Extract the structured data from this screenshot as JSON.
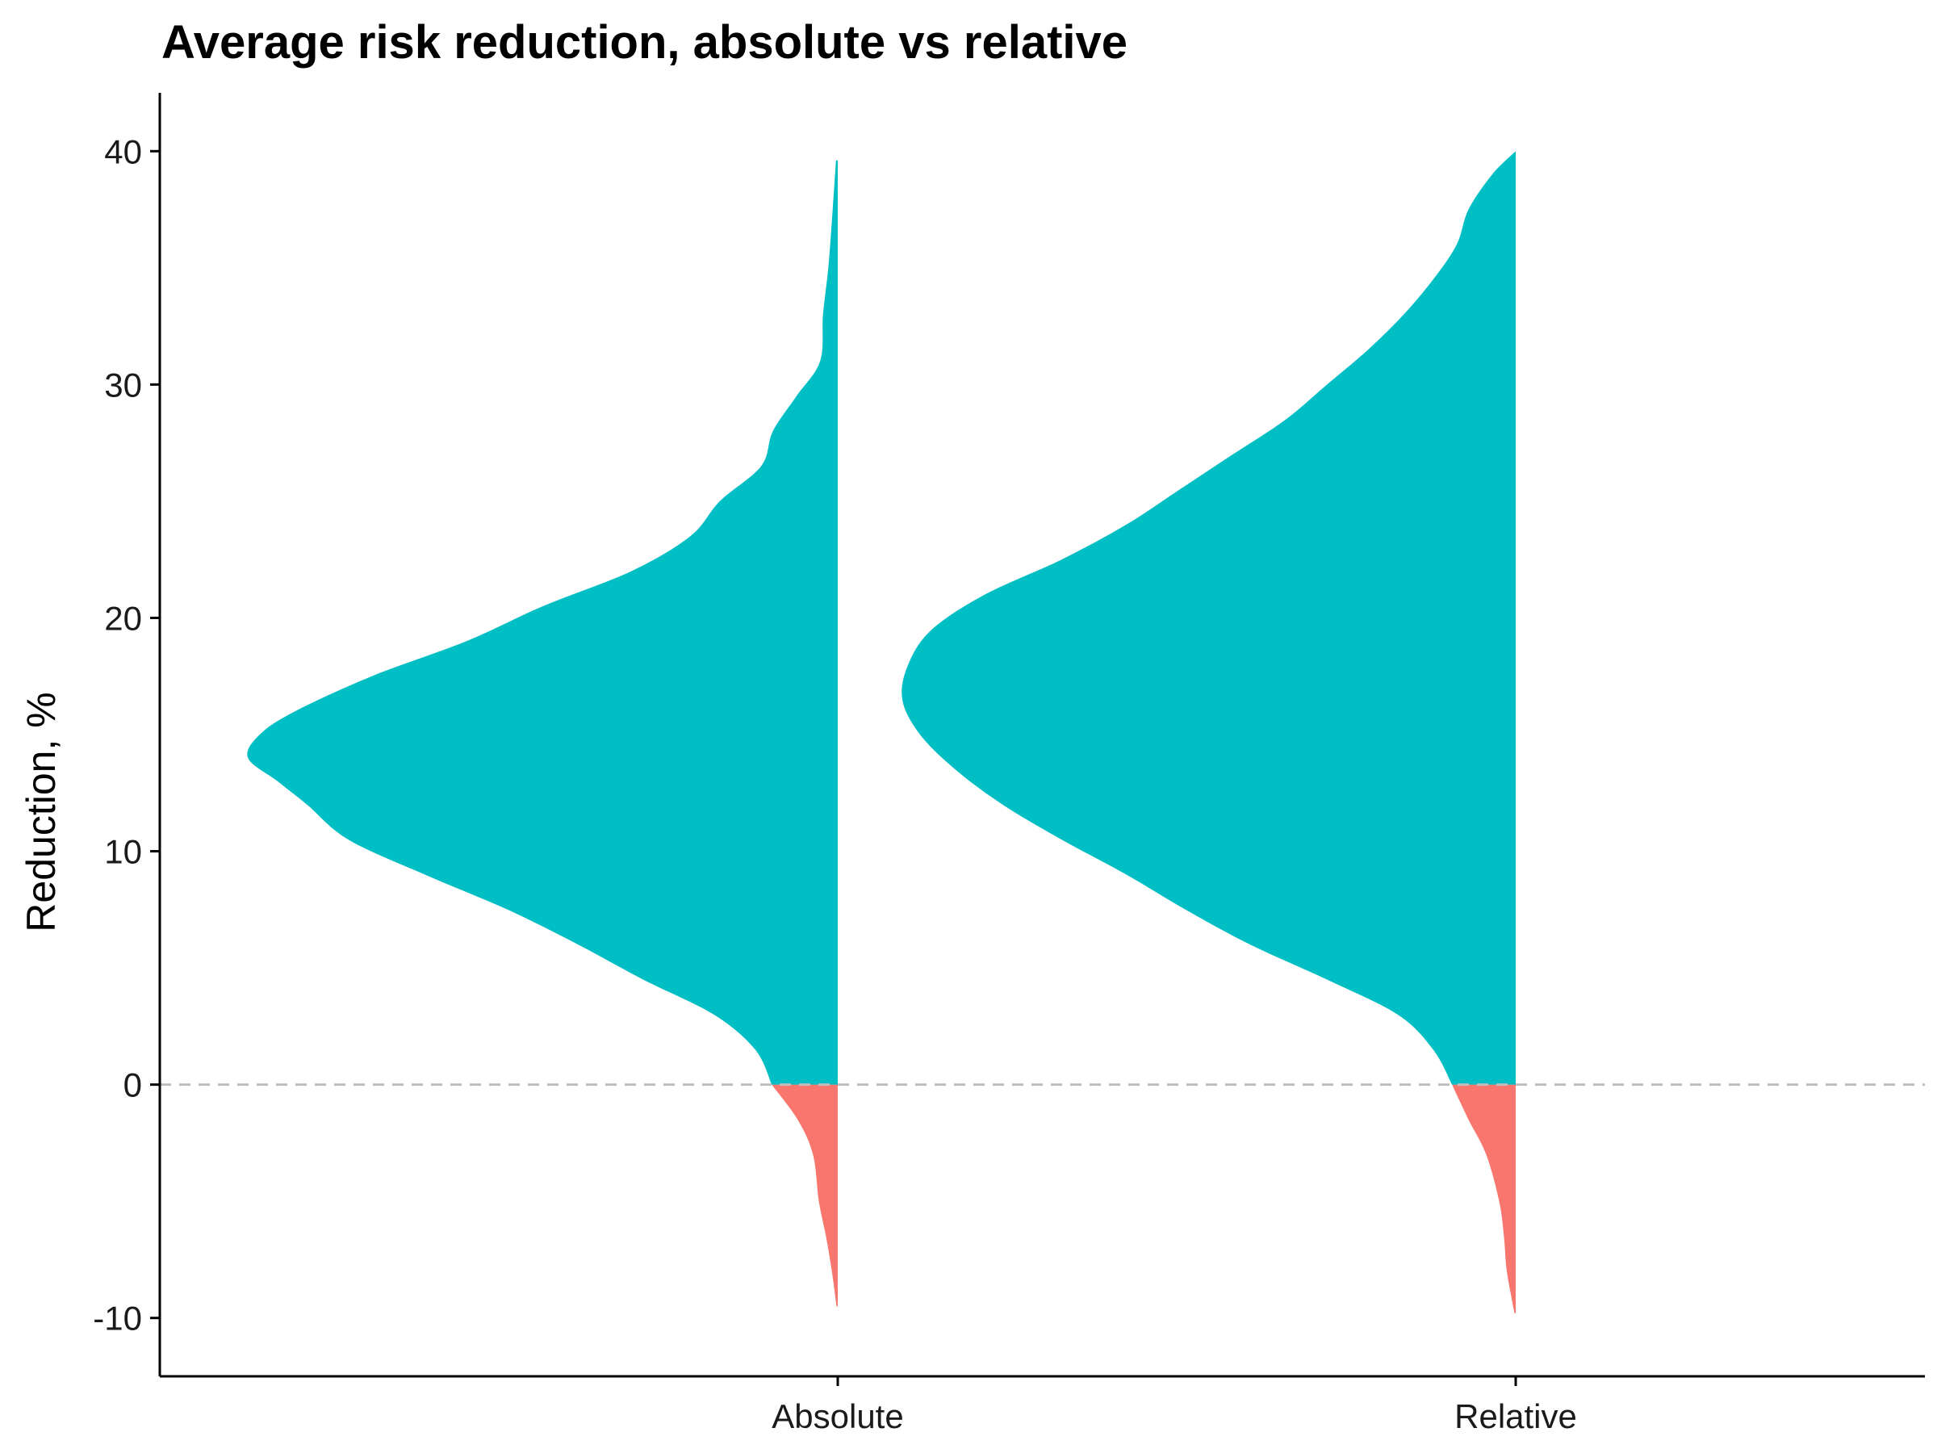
{
  "chart_data": {
    "type": "area",
    "subtype": "half-violin",
    "title": "Average risk reduction, absolute vs relative",
    "xlabel": "",
    "ylabel": "Reduction, %",
    "categories": [
      "Absolute",
      "Relative"
    ],
    "ylim": [
      -12.5,
      42.5
    ],
    "yticks": [
      -10,
      0,
      10,
      20,
      30,
      40
    ],
    "grid": false,
    "legend": "none",
    "reference_line": {
      "y": 0,
      "style": "dashed",
      "color": "#bebebe"
    },
    "colors": {
      "positive": "#00BFC4",
      "negative": "#F8766D",
      "axis": "#000000"
    },
    "series": [
      {
        "category": "Absolute",
        "range": [
          -9.5,
          39.6
        ],
        "density": [
          {
            "y": -9.5,
            "d": 0.002
          },
          {
            "y": -8,
            "d": 0.01
          },
          {
            "y": -6.5,
            "d": 0.02
          },
          {
            "y": -5,
            "d": 0.032
          },
          {
            "y": -3,
            "d": 0.042
          },
          {
            "y": -1.5,
            "d": 0.068
          },
          {
            "y": 0,
            "d": 0.112
          },
          {
            "y": 1.5,
            "d": 0.14
          },
          {
            "y": 3,
            "d": 0.21
          },
          {
            "y": 4.5,
            "d": 0.33
          },
          {
            "y": 6,
            "d": 0.44
          },
          {
            "y": 7.5,
            "d": 0.56
          },
          {
            "y": 9,
            "d": 0.7
          },
          {
            "y": 10.5,
            "d": 0.83
          },
          {
            "y": 12,
            "d": 0.9
          },
          {
            "y": 13,
            "d": 0.95
          },
          {
            "y": 14,
            "d": 1.0
          },
          {
            "y": 15,
            "d": 0.98
          },
          {
            "y": 16,
            "d": 0.92
          },
          {
            "y": 17.5,
            "d": 0.79
          },
          {
            "y": 19,
            "d": 0.63
          },
          {
            "y": 20.5,
            "d": 0.5
          },
          {
            "y": 22,
            "d": 0.35
          },
          {
            "y": 23.5,
            "d": 0.25
          },
          {
            "y": 25,
            "d": 0.2
          },
          {
            "y": 26.5,
            "d": 0.13
          },
          {
            "y": 28,
            "d": 0.11
          },
          {
            "y": 29.5,
            "d": 0.07
          },
          {
            "y": 31,
            "d": 0.03
          },
          {
            "y": 33,
            "d": 0.025
          },
          {
            "y": 35,
            "d": 0.016
          },
          {
            "y": 37,
            "d": 0.01
          },
          {
            "y": 39.6,
            "d": 0.003
          }
        ]
      },
      {
        "category": "Relative",
        "range": [
          -9.8,
          40
        ],
        "density": [
          {
            "y": -9.8,
            "d": 0.002
          },
          {
            "y": -8,
            "d": 0.015
          },
          {
            "y": -6.5,
            "d": 0.02
          },
          {
            "y": -5,
            "d": 0.028
          },
          {
            "y": -3,
            "d": 0.05
          },
          {
            "y": -1.5,
            "d": 0.08
          },
          {
            "y": 0,
            "d": 0.108
          },
          {
            "y": 1.5,
            "d": 0.14
          },
          {
            "y": 3,
            "d": 0.2
          },
          {
            "y": 4.5,
            "d": 0.32
          },
          {
            "y": 6,
            "d": 0.45
          },
          {
            "y": 7.5,
            "d": 0.56
          },
          {
            "y": 9,
            "d": 0.66
          },
          {
            "y": 10.5,
            "d": 0.77
          },
          {
            "y": 12,
            "d": 0.87
          },
          {
            "y": 13.5,
            "d": 0.95
          },
          {
            "y": 15,
            "d": 1.01
          },
          {
            "y": 16.5,
            "d": 1.04
          },
          {
            "y": 18,
            "d": 1.03
          },
          {
            "y": 19.5,
            "d": 0.99
          },
          {
            "y": 21,
            "d": 0.9
          },
          {
            "y": 22.5,
            "d": 0.77
          },
          {
            "y": 24,
            "d": 0.66
          },
          {
            "y": 25.5,
            "d": 0.57
          },
          {
            "y": 27,
            "d": 0.48
          },
          {
            "y": 28.5,
            "d": 0.39
          },
          {
            "y": 30,
            "d": 0.32
          },
          {
            "y": 31.5,
            "d": 0.25
          },
          {
            "y": 33,
            "d": 0.19
          },
          {
            "y": 34.5,
            "d": 0.14
          },
          {
            "y": 36,
            "d": 0.1
          },
          {
            "y": 37.5,
            "d": 0.08
          },
          {
            "y": 39,
            "d": 0.04
          },
          {
            "y": 40,
            "d": 0.0
          }
        ]
      }
    ]
  }
}
